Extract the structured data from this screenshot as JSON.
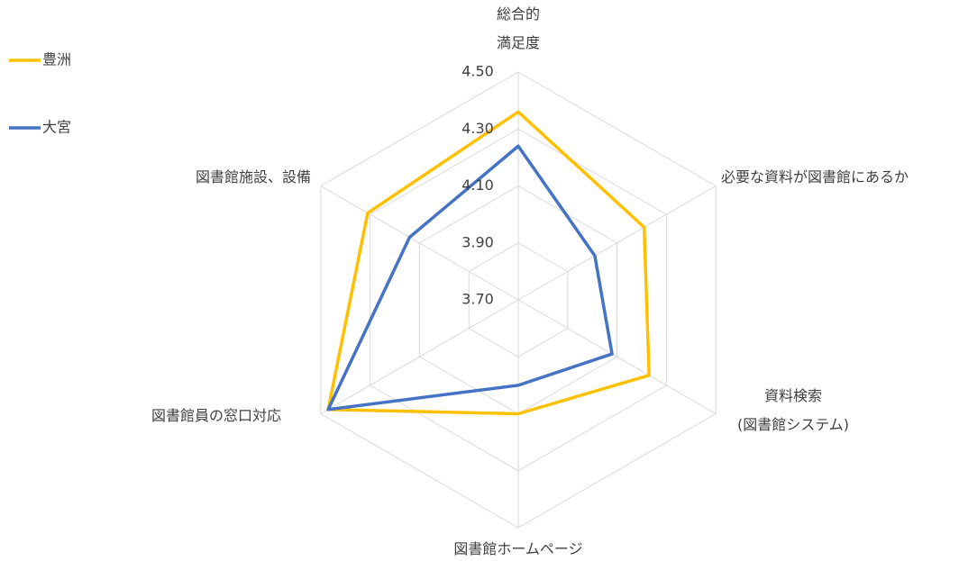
{
  "chart_data": {
    "type": "radar",
    "categories": [
      "総合的\n満足度",
      "必要な資料が図書館にあるか",
      "資料検索\n(図書館システム)",
      "図書館ホームページ",
      "図書館員の窓口対応",
      "図書館施設、設備"
    ],
    "series": [
      {
        "name": "豊洲",
        "color": "#FFC000",
        "values": [
          4.36,
          4.21,
          4.23,
          4.1,
          4.47,
          4.31
        ]
      },
      {
        "name": "大宮",
        "color": "#4472C4",
        "values": [
          4.24,
          4.01,
          4.08,
          4.0,
          4.47,
          4.14
        ]
      }
    ],
    "ylim": [
      3.7,
      4.5
    ],
    "yticks": [
      {
        "value": 3.7,
        "label": "3.70"
      },
      {
        "value": 3.9,
        "label": "3.90"
      },
      {
        "value": 4.1,
        "label": "4.10"
      },
      {
        "value": 4.3,
        "label": "4.30"
      },
      {
        "value": 4.5,
        "label": "4.50"
      }
    ],
    "grid": true,
    "legend": "top-left"
  }
}
